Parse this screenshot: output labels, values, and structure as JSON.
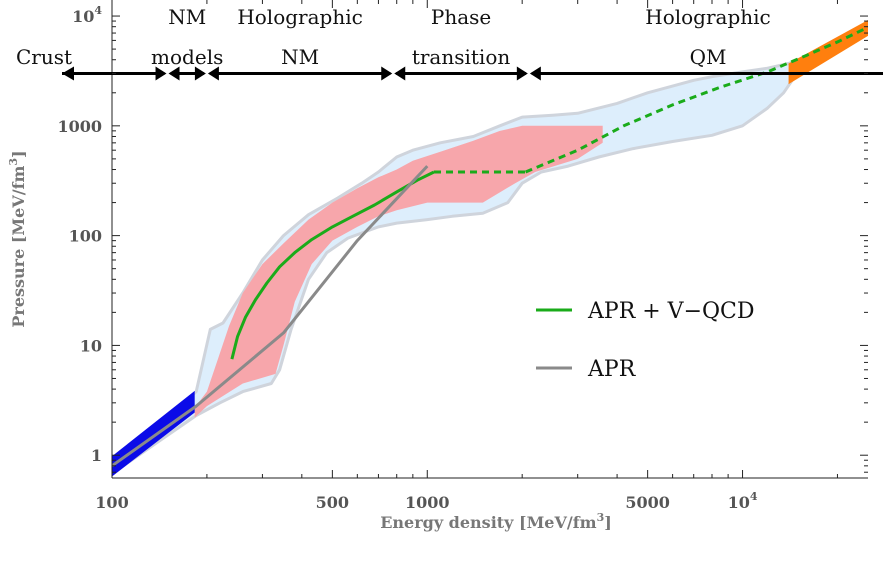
{
  "chart_data": {
    "type": "line",
    "xlabel": "Energy density [MeV/fm",
    "xlabel_sup": "3",
    "xlabel_close": "]",
    "ylabel": "Pressure [MeV/fm",
    "ylabel_sup": "3",
    "ylabel_close": "]",
    "x_scale": "log",
    "y_scale": "log",
    "xlim": [
      100,
      25000
    ],
    "ylim": [
      0.62,
      14000
    ],
    "x_ticks": [
      {
        "value": 100,
        "label": "100"
      },
      {
        "value": 500,
        "label": "500"
      },
      {
        "value": 1000,
        "label": "1000"
      },
      {
        "value": 5000,
        "label": "5000"
      },
      {
        "value": 10000,
        "label": "10",
        "sup": "4"
      }
    ],
    "y_ticks": [
      {
        "value": 1,
        "label": "1"
      },
      {
        "value": 10,
        "label": "10"
      },
      {
        "value": 100,
        "label": "100"
      },
      {
        "value": 1000,
        "label": "1000"
      },
      {
        "value": 10000,
        "label": "10",
        "sup": "4"
      }
    ],
    "regions": [
      {
        "lines": [
          "Crust"
        ],
        "x_from": 100,
        "x_to": 150
      },
      {
        "lines": [
          "NM",
          "models"
        ],
        "x_from": 150,
        "x_to": 200
      },
      {
        "lines": [
          "Holographic",
          "NM"
        ],
        "x_from": 200,
        "x_to": 780
      },
      {
        "lines": [
          "Phase",
          "transition"
        ],
        "x_from": 780,
        "x_to": 2100
      },
      {
        "lines": [
          "Holographic",
          "QM"
        ],
        "x_from": 2100,
        "x_to": 25000
      }
    ],
    "region_arrows_y": 3000,
    "bands": [
      {
        "name": "envelope",
        "color": "#ddeefc",
        "stroke": "#cfd4dc",
        "upper": [
          [
            185,
            3.8
          ],
          [
            205,
            14
          ],
          [
            225,
            16
          ],
          [
            260,
            30
          ],
          [
            300,
            60
          ],
          [
            350,
            100
          ],
          [
            420,
            155
          ],
          [
            520,
            220
          ],
          [
            620,
            300
          ],
          [
            700,
            380
          ],
          [
            800,
            520
          ],
          [
            900,
            600
          ],
          [
            1100,
            700
          ],
          [
            1400,
            800
          ],
          [
            1700,
            1000
          ],
          [
            2000,
            1200
          ],
          [
            2500,
            1250
          ],
          [
            3000,
            1300
          ],
          [
            4000,
            1600
          ],
          [
            5000,
            2000
          ],
          [
            6000,
            2300
          ],
          [
            7000,
            2600
          ],
          [
            8000,
            2800
          ],
          [
            10000,
            3100
          ],
          [
            12000,
            3350
          ],
          [
            14000,
            3700
          ],
          [
            16500,
            4500
          ]
        ],
        "lower": [
          [
            100,
            0.68
          ],
          [
            185,
            2.3
          ],
          [
            220,
            3.0
          ],
          [
            260,
            3.8
          ],
          [
            320,
            4.5
          ],
          [
            340,
            6
          ],
          [
            370,
            14
          ],
          [
            420,
            40
          ],
          [
            480,
            70
          ],
          [
            560,
            95
          ],
          [
            700,
            120
          ],
          [
            800,
            130
          ],
          [
            1000,
            140
          ],
          [
            1200,
            150
          ],
          [
            1500,
            160
          ],
          [
            1800,
            200
          ],
          [
            2000,
            300
          ],
          [
            2300,
            380
          ],
          [
            2800,
            430
          ],
          [
            3500,
            520
          ],
          [
            4500,
            620
          ],
          [
            6000,
            720
          ],
          [
            8000,
            820
          ],
          [
            10000,
            1000
          ],
          [
            12000,
            1450
          ],
          [
            13500,
            2000
          ],
          [
            14500,
            2700
          ],
          [
            16500,
            4500
          ]
        ]
      },
      {
        "name": "holographic-nm",
        "color": "#f7a6ab",
        "stroke": "none",
        "upper": [
          [
            183,
            2.7
          ],
          [
            200,
            3.8
          ],
          [
            215,
            7
          ],
          [
            235,
            15
          ],
          [
            260,
            30
          ],
          [
            300,
            55
          ],
          [
            350,
            85
          ],
          [
            420,
            140
          ],
          [
            500,
            200
          ],
          [
            600,
            270
          ],
          [
            700,
            340
          ],
          [
            800,
            400
          ],
          [
            900,
            480
          ],
          [
            1100,
            580
          ],
          [
            1400,
            730
          ],
          [
            1700,
            900
          ],
          [
            2000,
            1000
          ],
          [
            2500,
            1000
          ],
          [
            3600,
            1000
          ]
        ],
        "lower": [
          [
            183,
            2.2
          ],
          [
            200,
            2.8
          ],
          [
            260,
            4.5
          ],
          [
            330,
            5.5
          ],
          [
            350,
            10
          ],
          [
            380,
            25
          ],
          [
            430,
            55
          ],
          [
            500,
            90
          ],
          [
            600,
            120
          ],
          [
            700,
            150
          ],
          [
            800,
            170
          ],
          [
            1000,
            200
          ],
          [
            1500,
            200
          ],
          [
            1900,
            300
          ],
          [
            2200,
            380
          ],
          [
            3000,
            500
          ],
          [
            3600,
            700
          ]
        ]
      },
      {
        "name": "crust",
        "color": "#0b0be8",
        "stroke": "none",
        "upper": [
          [
            100,
            0.98
          ],
          [
            183,
            3.85
          ]
        ],
        "lower": [
          [
            100,
            0.64
          ],
          [
            183,
            2.45
          ]
        ]
      },
      {
        "name": "qm-high",
        "color": "#ff7f0e",
        "stroke": "none",
        "upper": [
          [
            14000,
            3700
          ],
          [
            25000,
            9200
          ]
        ],
        "lower": [
          [
            14000,
            2400
          ],
          [
            25000,
            6600
          ]
        ]
      }
    ],
    "series": [
      {
        "name": "APR + V−QCD",
        "color": "#1aab1a",
        "segments": [
          {
            "dash": false,
            "points": [
              [
                240,
                7.5
              ],
              [
                250,
                12
              ],
              [
                265,
                18
              ],
              [
                285,
                26
              ],
              [
                310,
                37
              ],
              [
                340,
                52
              ],
              [
                380,
                70
              ],
              [
                430,
                92
              ],
              [
                500,
                120
              ],
              [
                580,
                150
              ],
              [
                680,
                190
              ],
              [
                800,
                250
              ],
              [
                930,
                320
              ],
              [
                1050,
                380
              ]
            ]
          },
          {
            "dash": true,
            "points": [
              [
                1050,
                380
              ],
              [
                1500,
                380
              ],
              [
                2050,
                380
              ]
            ]
          },
          {
            "dash": true,
            "points": [
              [
                2050,
                380
              ],
              [
                3000,
                600
              ],
              [
                4200,
                1000
              ],
              [
                6000,
                1550
              ],
              [
                8500,
                2250
              ],
              [
                12000,
                3100
              ],
              [
                16000,
                4400
              ],
              [
                20000,
                5800
              ],
              [
                25000,
                7900
              ]
            ]
          }
        ]
      },
      {
        "name": "APR",
        "color": "#8a8a8a",
        "segments": [
          {
            "dash": false,
            "points": [
              [
                100,
                0.8
              ],
              [
                185,
                2.8
              ],
              [
                350,
                13
              ],
              [
                600,
                90
              ],
              [
                1000,
                430
              ]
            ]
          }
        ]
      }
    ],
    "legend": {
      "position": "right-middle",
      "entries": [
        {
          "label": "APR + V−QCD",
          "color": "#1aab1a"
        },
        {
          "label": "APR",
          "color": "#8a8a8a"
        }
      ]
    },
    "grid": false
  }
}
